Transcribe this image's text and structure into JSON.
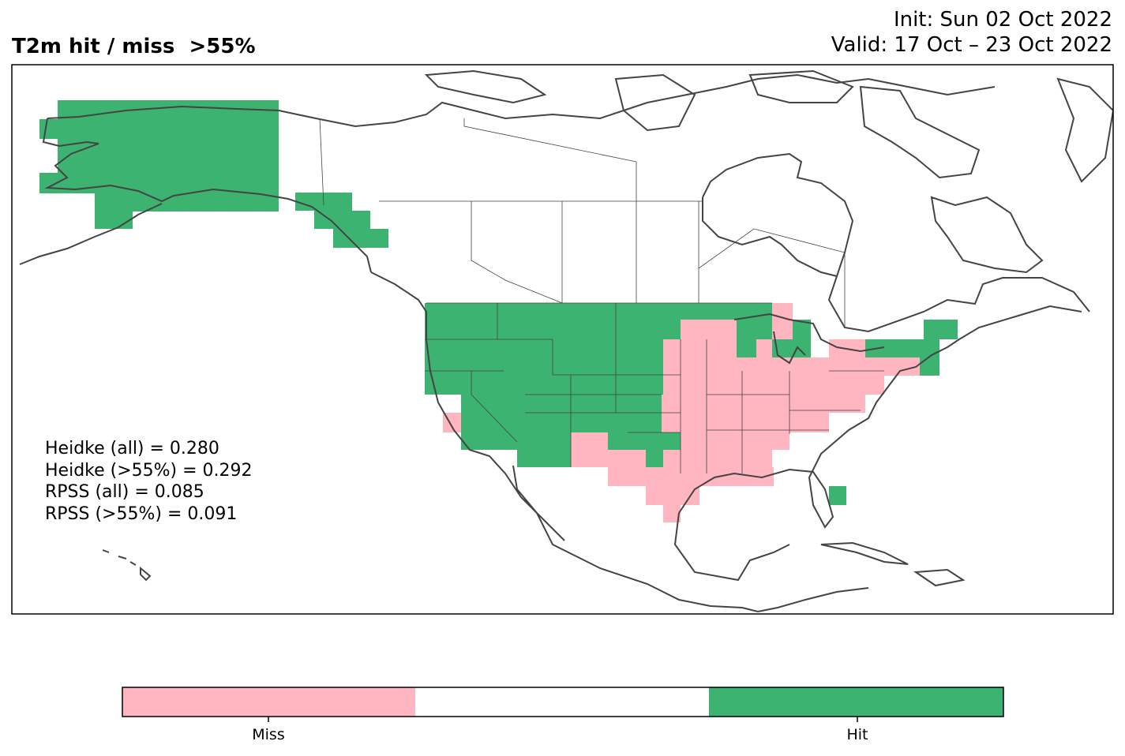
{
  "header": {
    "title": "T2m hit / miss  >55%",
    "init": "Init: Sun 02 Oct 2022",
    "valid": "Valid: 17 Oct – 23 Oct 2022"
  },
  "scores": {
    "heidke_all": "Heidke (all) = 0.280",
    "heidke_55": "Heidke (>55%) = 0.292",
    "rpss_all": "RPSS (all) = 0.085",
    "rpss_55": "RPSS (>55%) = 0.091"
  },
  "legend": {
    "miss_label": "Miss",
    "hit_label": "Hit",
    "colors": {
      "miss": "#ffb6c1",
      "neutral": "#ffffff",
      "hit": "#3cb371"
    }
  },
  "map": {
    "category_colors": {
      "hit": "#3cb371",
      "miss": "#ffb6c1"
    },
    "coastline_color": "#444444"
  }
}
